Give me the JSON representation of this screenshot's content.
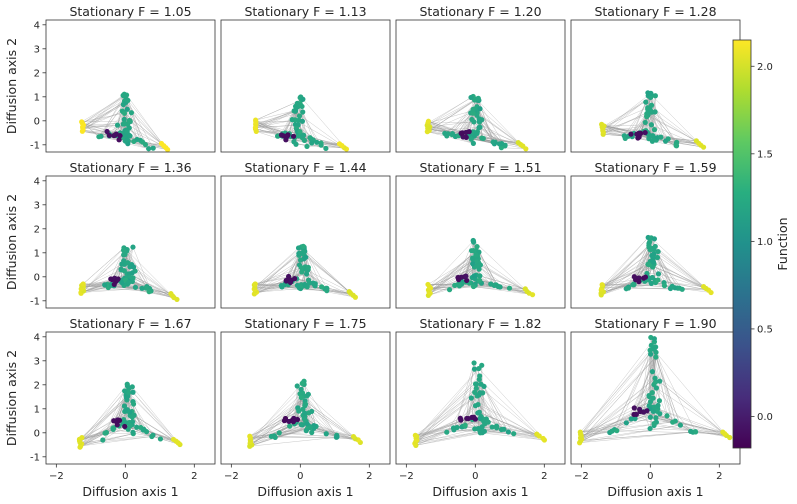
{
  "chart_data": {
    "type": "scatter",
    "layout": "3x4 grid of network scatter panels with shared axes",
    "xlabel": "Diffusion axis 1",
    "ylabel": "Diffusion axis 2",
    "xlim": [
      -2.3,
      2.6
    ],
    "ylim": [
      -1.3,
      4.2
    ],
    "x_ticks": [
      "-2",
      "0",
      "2"
    ],
    "y_ticks": [
      "-1",
      "0",
      "1",
      "2",
      "3",
      "4"
    ],
    "grid": false,
    "edge_color": "#9a9a9a",
    "colorbar": {
      "label": "Function",
      "range": [
        -0.18,
        2.15
      ],
      "ticks": [
        "0.0",
        "0.5",
        "1.0",
        "1.5",
        "2.0"
      ],
      "colormap": "viridis"
    },
    "panels": [
      {
        "title": "Stationary F = 1.05",
        "F": 1.05,
        "bottom": [
          0,
          -1.05
        ],
        "left": [
          -1.25,
          -0.25
        ],
        "right": [
          1.25,
          -1.2
        ],
        "hi": 2.15,
        "mid": 1.2,
        "top": 1.15
      },
      {
        "title": "Stationary F = 1.13",
        "F": 1.13,
        "bottom": [
          0,
          -1.05
        ],
        "left": [
          -1.3,
          -0.2
        ],
        "right": [
          1.35,
          -1.2
        ],
        "hi": 2.1,
        "mid": 1.2,
        "top": 1.15
      },
      {
        "title": "Stationary F = 1.20",
        "F": 1.2,
        "bottom": [
          0,
          -1.05
        ],
        "left": [
          -1.35,
          -0.25
        ],
        "right": [
          1.45,
          -1.15
        ],
        "hi": 2.05,
        "mid": 1.2,
        "top": 1.15
      },
      {
        "title": "Stationary F = 1.28",
        "F": 1.28,
        "bottom": [
          0,
          -1.05
        ],
        "left": [
          -1.4,
          -0.35
        ],
        "right": [
          1.55,
          -1.1
        ],
        "hi": 2.05,
        "mid": 1.2,
        "top": 1.2
      },
      {
        "title": "Stationary F = 1.36",
        "F": 1.36,
        "bottom": [
          0.05,
          -0.5
        ],
        "left": [
          -1.25,
          -0.5
        ],
        "right": [
          1.5,
          -0.95
        ],
        "hi": 2.05,
        "mid": 1.2,
        "top": 1.3
      },
      {
        "title": "Stationary F = 1.44",
        "F": 1.44,
        "bottom": [
          0.05,
          -0.5
        ],
        "left": [
          -1.3,
          -0.5
        ],
        "right": [
          1.6,
          -0.85
        ],
        "hi": 2.05,
        "mid": 1.2,
        "top": 1.35
      },
      {
        "title": "Stationary F = 1.51",
        "F": 1.51,
        "bottom": [
          0.05,
          -0.5
        ],
        "left": [
          -1.35,
          -0.55
        ],
        "right": [
          1.65,
          -0.75
        ],
        "hi": 2.05,
        "mid": 1.2,
        "top": 1.5
      },
      {
        "title": "Stationary F = 1.59",
        "F": 1.59,
        "bottom": [
          0.05,
          -0.5
        ],
        "left": [
          -1.4,
          -0.55
        ],
        "right": [
          1.75,
          -0.65
        ],
        "hi": 2.05,
        "mid": 1.2,
        "top": 1.7
      },
      {
        "title": "Stationary F = 1.67",
        "F": 1.67,
        "bottom": [
          0.1,
          0.0
        ],
        "left": [
          -1.3,
          -0.4
        ],
        "right": [
          1.6,
          -0.5
        ],
        "hi": 2.05,
        "mid": 1.2,
        "top": 2.1
      },
      {
        "title": "Stationary F = 1.75",
        "F": 1.75,
        "bottom": [
          0.1,
          0.0
        ],
        "left": [
          -1.45,
          -0.35
        ],
        "right": [
          1.75,
          -0.4
        ],
        "hi": 2.05,
        "mid": 1.2,
        "top": 2.5
      },
      {
        "title": "Stationary F = 1.82",
        "F": 1.82,
        "bottom": [
          0.1,
          0.0
        ],
        "left": [
          -1.7,
          -0.3
        ],
        "right": [
          2.0,
          -0.3
        ],
        "hi": 2.05,
        "mid": 1.2,
        "top": 3.0
      },
      {
        "title": "Stationary F = 1.90",
        "F": 1.9,
        "bottom": [
          0.1,
          0.15
        ],
        "left": [
          -2.0,
          -0.2
        ],
        "right": [
          2.3,
          -0.2
        ],
        "hi": 2.05,
        "mid": 1.2,
        "top": 4.0
      }
    ]
  }
}
